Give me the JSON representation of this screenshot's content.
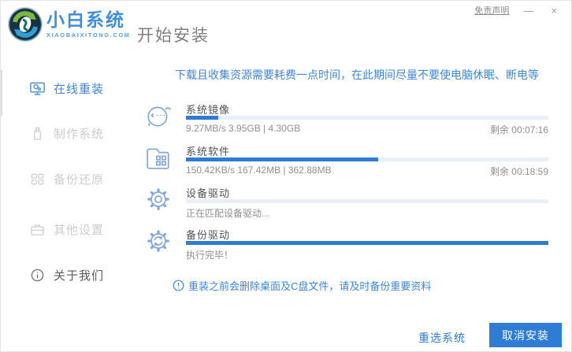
{
  "window": {
    "disclaimer_link": "免责声明",
    "minimize_label": "—",
    "close_label": "×"
  },
  "header": {
    "brand_name": "小白系统",
    "brand_domain": "XIAOBAIXITONG.COM",
    "page_title": "开始安装"
  },
  "sidebar": {
    "items": [
      {
        "label": "在线重装",
        "icon": "monitor-reinstall-icon",
        "active": true
      },
      {
        "label": "制作系统",
        "icon": "usb-drive-icon",
        "active": false
      },
      {
        "label": "备份还原",
        "icon": "backup-grid-icon",
        "active": false
      },
      {
        "label": "其他设置",
        "icon": "briefcase-icon",
        "active": false
      },
      {
        "label": "关于我们",
        "icon": "info-icon",
        "active": false
      }
    ]
  },
  "main": {
    "notice": "下载且收集资源需要耗费一点时间，在此期间尽量不要使电脑休眠、断电等",
    "tasks": [
      {
        "name": "系统镜像",
        "icon": "mascot-face-icon",
        "progress_percent": 9,
        "status": "9.27MB/s 3.95GB | 4.30GB",
        "remaining": "剩余 00:07:16"
      },
      {
        "name": "系统软件",
        "icon": "software-folder-icon",
        "progress_percent": 53,
        "status": "150.42KB/s 167.42MB | 362.88MB",
        "remaining": "剩余 00:18:59"
      },
      {
        "name": "设备驱动",
        "icon": "gear-icon",
        "progress_percent": 0,
        "status": "正在匹配设备驱动...",
        "remaining": ""
      },
      {
        "name": "备份驱动",
        "icon": "gear-sync-icon",
        "progress_percent": 100,
        "status": "执行完毕！",
        "remaining": ""
      }
    ],
    "warning": "重装之前会删除桌面及C盘文件，请及时备份重要资料"
  },
  "footer": {
    "reselect_label": "重选系统",
    "cancel_label": "取消安装"
  },
  "colors": {
    "accent_blue": "#3e87da",
    "fill_blue": "#2e7cd4",
    "track_blue": "#e9effa",
    "brand_blue": "#3e8ee0",
    "disabled_gray": "#cbcbcb"
  }
}
